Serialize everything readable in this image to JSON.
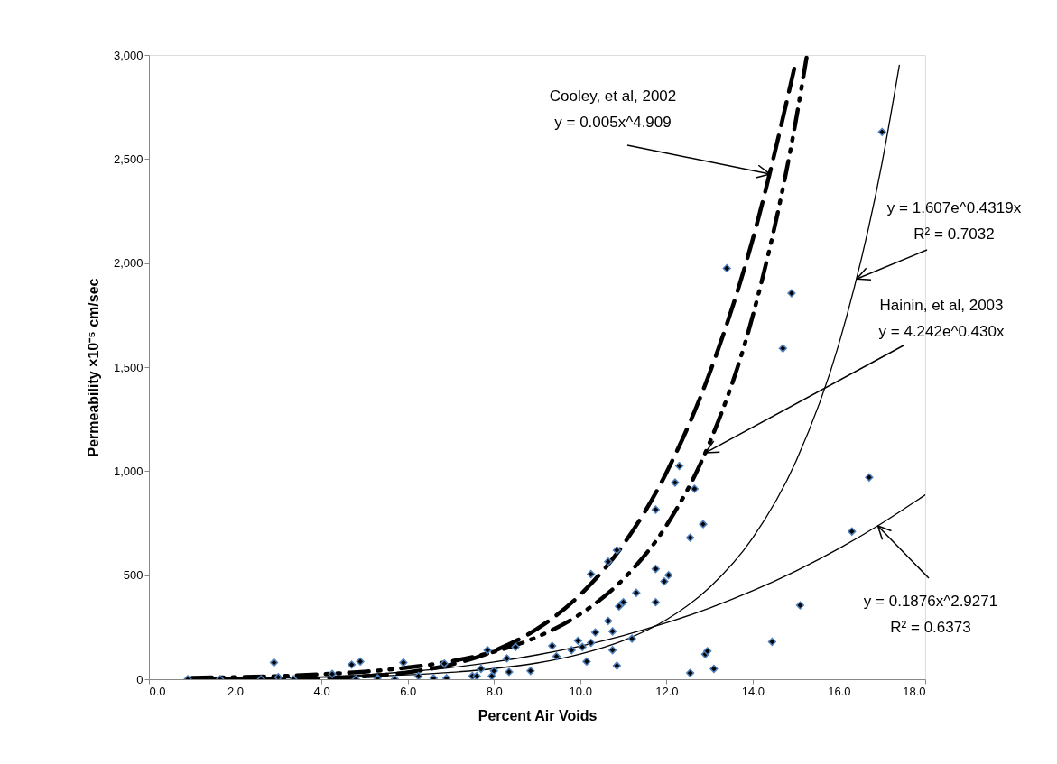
{
  "chart_data": {
    "type": "scatter",
    "xlabel": "Percent Air Voids",
    "ylabel": "Permeability ×10⁻⁵ cm/sec",
    "xlim": [
      0,
      18
    ],
    "ylim": [
      0,
      3000
    ],
    "xticks": [
      {
        "value": 0,
        "label": "0.0"
      },
      {
        "value": 2,
        "label": "2.0"
      },
      {
        "value": 4,
        "label": "4.0"
      },
      {
        "value": 6,
        "label": "6.0"
      },
      {
        "value": 8,
        "label": "8.0"
      },
      {
        "value": 10,
        "label": "10.0"
      },
      {
        "value": 12,
        "label": "12.0"
      },
      {
        "value": 14,
        "label": "14.0"
      },
      {
        "value": 16,
        "label": "16.0"
      },
      {
        "value": 18,
        "label": "18.0"
      }
    ],
    "yticks": [
      0,
      500,
      {
        "value": 1000,
        "label": "1,000"
      },
      {
        "value": 1500,
        "label": "1,500"
      },
      {
        "value": 2000,
        "label": "2,000"
      },
      {
        "value": 2500,
        "label": "2,500"
      },
      {
        "value": 3000,
        "label": "3,000"
      }
    ],
    "grid": false,
    "legend": false,
    "series": [
      {
        "color": "#000000",
        "marker": "diamond",
        "x": [
          0.9,
          1.65,
          2.6,
          2.9,
          3.0,
          3.35,
          4.25,
          4.7,
          4.9,
          4.8,
          5.3,
          5.7,
          5.9,
          6.25,
          6.6,
          6.85,
          6.9,
          7.5,
          7.6,
          7.85,
          7.7,
          7.95,
          8.0,
          8.3,
          8.35,
          8.5,
          8.85,
          9.35,
          9.45,
          9.8,
          9.95,
          10.05,
          10.15,
          10.25,
          10.25,
          10.35,
          10.65,
          10.65,
          10.75,
          10.75,
          10.85,
          10.85,
          10.9,
          11.0,
          11.2,
          11.3,
          11.75,
          11.75,
          11.75,
          11.95,
          12.05,
          12.2,
          12.3,
          12.55,
          12.55,
          12.65,
          12.85,
          12.9,
          12.95,
          13.1,
          14.45,
          15.1,
          16.3,
          16.7,
          17.0,
          13.4,
          14.9,
          14.7
        ],
        "values": [
          0,
          0,
          0,
          80,
          10,
          0,
          25,
          70,
          85,
          0,
          5,
          0,
          80,
          15,
          5,
          75,
          5,
          15,
          15,
          140,
          50,
          15,
          40,
          100,
          35,
          155,
          40,
          160,
          110,
          140,
          185,
          155,
          85,
          505,
          175,
          225,
          280,
          565,
          230,
          140,
          65,
          620,
          350,
          370,
          195,
          415,
          815,
          530,
          370,
          470,
          500,
          945,
          1025,
          680,
          30,
          915,
          745,
          120,
          135,
          50,
          180,
          355,
          710,
          970,
          2630,
          1975,
          1855,
          1590
        ]
      },
      {
        "type": "line",
        "color": "#000000",
        "line_style": "dashed",
        "marker": "none",
        "x": [
          1,
          2,
          3,
          4,
          5,
          6,
          7,
          8,
          9,
          10,
          11,
          12,
          13,
          14,
          15
        ],
        "values": [
          0,
          0,
          1,
          5,
          14,
          33,
          70,
          136,
          242,
          406,
          647,
          993,
          1471,
          2114,
          2968
        ]
      },
      {
        "type": "line",
        "color": "#000000",
        "line_style": "dotted",
        "marker": "none",
        "x": [
          1,
          2,
          3,
          4,
          5,
          6,
          7,
          8,
          9,
          10,
          11,
          12,
          13,
          14,
          15,
          15.25
        ],
        "values": [
          7,
          10,
          15,
          24,
          36,
          56,
          86,
          132,
          203,
          313,
          481,
          739,
          1136,
          1746,
          2684,
          2989
        ]
      },
      {
        "type": "line",
        "color": "#000000",
        "line_style": "solid",
        "marker": "none",
        "x": [
          1,
          2,
          3,
          4,
          5,
          6,
          7,
          8,
          9,
          10,
          11,
          12,
          13,
          14,
          15,
          16,
          17,
          17.4
        ],
        "values": [
          2,
          4,
          6,
          9,
          14,
          21,
          33,
          51,
          78,
          121,
          186,
          286,
          441,
          679,
          1046,
          1612,
          2483,
          2951
        ]
      },
      {
        "type": "line",
        "color": "#000000",
        "line_style": "solid",
        "marker": "none",
        "x": [
          1,
          2,
          3,
          4,
          5,
          6,
          7,
          8,
          9,
          10,
          11,
          12,
          13,
          14,
          15,
          16,
          17,
          18
        ],
        "values": [
          0,
          1,
          5,
          11,
          21,
          36,
          56,
          83,
          117,
          159,
          210,
          271,
          342,
          425,
          520,
          628,
          750,
          886
        ]
      }
    ],
    "annotations": [
      {
        "text": "Cooley, et al, 2002\ny = 0.005x^4.909",
        "x": 14.4,
        "y": 2428
      },
      {
        "text": "y = 1.607e^0.4319x\nR² = 0.7032",
        "x": 16.41,
        "y": 1924
      },
      {
        "text": "Hainin, et al, 2003\ny = 4.242e^0.430x",
        "x": 12.9,
        "y": 1088
      },
      {
        "text": "y = 0.1876x^2.9271\nR² = 0.6373",
        "x": 16.9,
        "y": 737
      }
    ]
  }
}
